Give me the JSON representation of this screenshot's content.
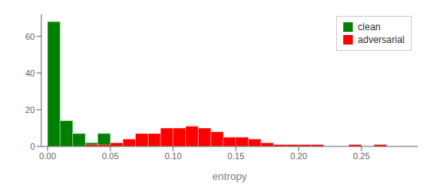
{
  "chart_data": {
    "type": "histogram",
    "xlabel": "entropy",
    "bins": [
      0.0,
      0.01,
      0.02,
      0.03,
      0.04,
      0.05,
      0.06,
      0.07,
      0.08,
      0.09,
      0.1,
      0.11,
      0.12,
      0.13,
      0.14,
      0.15,
      0.16,
      0.17,
      0.18,
      0.19,
      0.2,
      0.21,
      0.22,
      0.23,
      0.24,
      0.25,
      0.26,
      0.27,
      0.28,
      0.29
    ],
    "series": [
      {
        "name": "clean",
        "color": "#008000",
        "values": [
          68,
          14,
          7,
          2,
          7,
          1,
          0,
          0,
          0,
          0,
          0,
          0,
          0,
          0,
          0,
          0,
          0,
          0,
          0,
          0,
          0,
          0,
          0,
          0,
          0,
          0,
          0,
          0,
          0
        ]
      },
      {
        "name": "adversarial",
        "color": "#ff0000",
        "values": [
          0,
          0,
          0,
          1,
          1,
          2,
          4,
          7,
          7,
          10,
          10,
          11,
          10,
          8,
          5,
          5,
          4,
          2,
          1,
          1,
          1,
          1,
          0,
          0,
          1,
          0,
          1,
          0,
          0
        ]
      }
    ],
    "xlim": [
      -0.005,
      0.295
    ],
    "ylim": [
      0,
      72
    ],
    "xticks": [
      {
        "value": 0,
        "label": "0.00"
      },
      0.05,
      {
        "value": 0.1,
        "label": "0.10"
      },
      0.15,
      {
        "value": 0.2,
        "label": "0.20"
      },
      0.25
    ],
    "yticks": [
      0,
      20,
      40,
      60
    ],
    "grid": false,
    "legend": "upper right"
  }
}
